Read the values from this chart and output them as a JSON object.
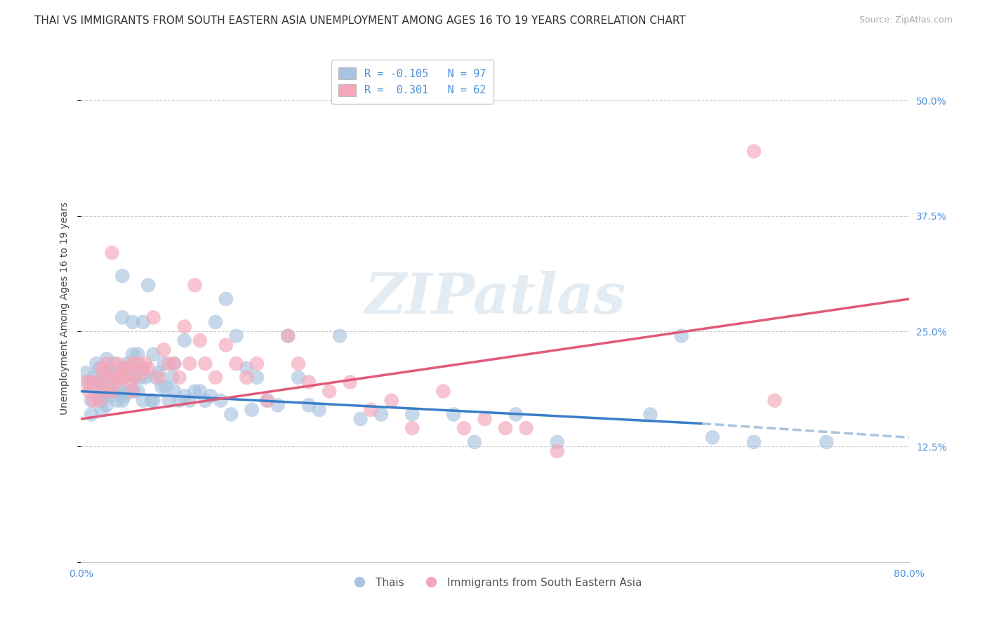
{
  "title": "THAI VS IMMIGRANTS FROM SOUTH EASTERN ASIA UNEMPLOYMENT AMONG AGES 16 TO 19 YEARS CORRELATION CHART",
  "source": "Source: ZipAtlas.com",
  "ylabel": "Unemployment Among Ages 16 to 19 years",
  "xlim": [
    0.0,
    0.8
  ],
  "ylim": [
    0.0,
    0.55
  ],
  "xticks": [
    0.0,
    0.2,
    0.4,
    0.6,
    0.8
  ],
  "yticks": [
    0.0,
    0.125,
    0.25,
    0.375,
    0.5
  ],
  "yticklabels_right": [
    "",
    "12.5%",
    "25.0%",
    "37.5%",
    "50.0%"
  ],
  "blue_color": "#a8c4e0",
  "pink_color": "#f4a7b9",
  "blue_line_color": "#3a7ec8",
  "blue_line_dashed_color": "#a8c4e0",
  "pink_line_color": "#e05a7a",
  "blue_r": -0.105,
  "blue_n": 97,
  "pink_r": 0.301,
  "pink_n": 62,
  "watermark": "ZIPatlas",
  "grid_color": "#cccccc",
  "background_color": "#ffffff",
  "title_fontsize": 11,
  "source_fontsize": 9,
  "axis_label_fontsize": 10,
  "tick_fontsize": 10,
  "legend_fontsize": 11,
  "blue_trend_x0": 0.0,
  "blue_trend_x1": 0.6,
  "blue_trend_x1_dashed": 0.8,
  "blue_trend_y0": 0.185,
  "blue_trend_y1": 0.15,
  "blue_trend_y1_dashed": 0.135,
  "pink_trend_x0": 0.0,
  "pink_trend_x1": 0.8,
  "pink_trend_y0": 0.155,
  "pink_trend_y1": 0.285,
  "blue_scatter_x": [
    0.005,
    0.008,
    0.01,
    0.01,
    0.01,
    0.012,
    0.015,
    0.015,
    0.018,
    0.018,
    0.02,
    0.02,
    0.02,
    0.02,
    0.022,
    0.022,
    0.025,
    0.025,
    0.025,
    0.025,
    0.028,
    0.028,
    0.03,
    0.03,
    0.032,
    0.032,
    0.035,
    0.035,
    0.038,
    0.04,
    0.04,
    0.04,
    0.04,
    0.042,
    0.042,
    0.045,
    0.045,
    0.048,
    0.05,
    0.05,
    0.05,
    0.052,
    0.055,
    0.055,
    0.058,
    0.06,
    0.06,
    0.06,
    0.062,
    0.065,
    0.068,
    0.07,
    0.07,
    0.072,
    0.075,
    0.078,
    0.08,
    0.082,
    0.085,
    0.088,
    0.09,
    0.09,
    0.095,
    0.1,
    0.1,
    0.105,
    0.11,
    0.115,
    0.12,
    0.125,
    0.13,
    0.135,
    0.14,
    0.145,
    0.15,
    0.16,
    0.165,
    0.17,
    0.18,
    0.19,
    0.2,
    0.21,
    0.22,
    0.23,
    0.25,
    0.27,
    0.29,
    0.32,
    0.36,
    0.38,
    0.42,
    0.46,
    0.55,
    0.58,
    0.61,
    0.65,
    0.72
  ],
  "blue_scatter_y": [
    0.205,
    0.195,
    0.19,
    0.175,
    0.16,
    0.2,
    0.215,
    0.195,
    0.21,
    0.18,
    0.195,
    0.185,
    0.175,
    0.165,
    0.2,
    0.18,
    0.22,
    0.205,
    0.185,
    0.17,
    0.2,
    0.18,
    0.205,
    0.185,
    0.215,
    0.185,
    0.2,
    0.175,
    0.185,
    0.31,
    0.265,
    0.2,
    0.175,
    0.21,
    0.18,
    0.215,
    0.185,
    0.21,
    0.26,
    0.225,
    0.185,
    0.2,
    0.225,
    0.185,
    0.2,
    0.26,
    0.21,
    0.175,
    0.2,
    0.3,
    0.175,
    0.225,
    0.175,
    0.2,
    0.205,
    0.19,
    0.215,
    0.19,
    0.175,
    0.2,
    0.215,
    0.185,
    0.175,
    0.24,
    0.18,
    0.175,
    0.185,
    0.185,
    0.175,
    0.18,
    0.26,
    0.175,
    0.285,
    0.16,
    0.245,
    0.21,
    0.165,
    0.2,
    0.175,
    0.17,
    0.245,
    0.2,
    0.17,
    0.165,
    0.245,
    0.155,
    0.16,
    0.16,
    0.16,
    0.13,
    0.16,
    0.13,
    0.16,
    0.245,
    0.135,
    0.13,
    0.13
  ],
  "pink_scatter_x": [
    0.005,
    0.008,
    0.01,
    0.012,
    0.015,
    0.018,
    0.02,
    0.02,
    0.022,
    0.025,
    0.025,
    0.028,
    0.03,
    0.03,
    0.032,
    0.035,
    0.035,
    0.038,
    0.04,
    0.042,
    0.045,
    0.048,
    0.05,
    0.05,
    0.052,
    0.055,
    0.06,
    0.062,
    0.065,
    0.07,
    0.075,
    0.08,
    0.085,
    0.09,
    0.095,
    0.1,
    0.105,
    0.11,
    0.115,
    0.12,
    0.13,
    0.14,
    0.15,
    0.16,
    0.17,
    0.18,
    0.2,
    0.21,
    0.22,
    0.24,
    0.26,
    0.28,
    0.3,
    0.32,
    0.35,
    0.37,
    0.39,
    0.41,
    0.43,
    0.46,
    0.65,
    0.67
  ],
  "pink_scatter_y": [
    0.195,
    0.185,
    0.195,
    0.175,
    0.195,
    0.175,
    0.21,
    0.19,
    0.205,
    0.215,
    0.185,
    0.2,
    0.335,
    0.185,
    0.2,
    0.215,
    0.195,
    0.2,
    0.21,
    0.2,
    0.21,
    0.195,
    0.215,
    0.185,
    0.2,
    0.215,
    0.205,
    0.215,
    0.21,
    0.265,
    0.2,
    0.23,
    0.215,
    0.215,
    0.2,
    0.255,
    0.215,
    0.3,
    0.24,
    0.215,
    0.2,
    0.235,
    0.215,
    0.2,
    0.215,
    0.175,
    0.245,
    0.215,
    0.195,
    0.185,
    0.195,
    0.165,
    0.175,
    0.145,
    0.185,
    0.145,
    0.155,
    0.145,
    0.145,
    0.12,
    0.445,
    0.175
  ]
}
